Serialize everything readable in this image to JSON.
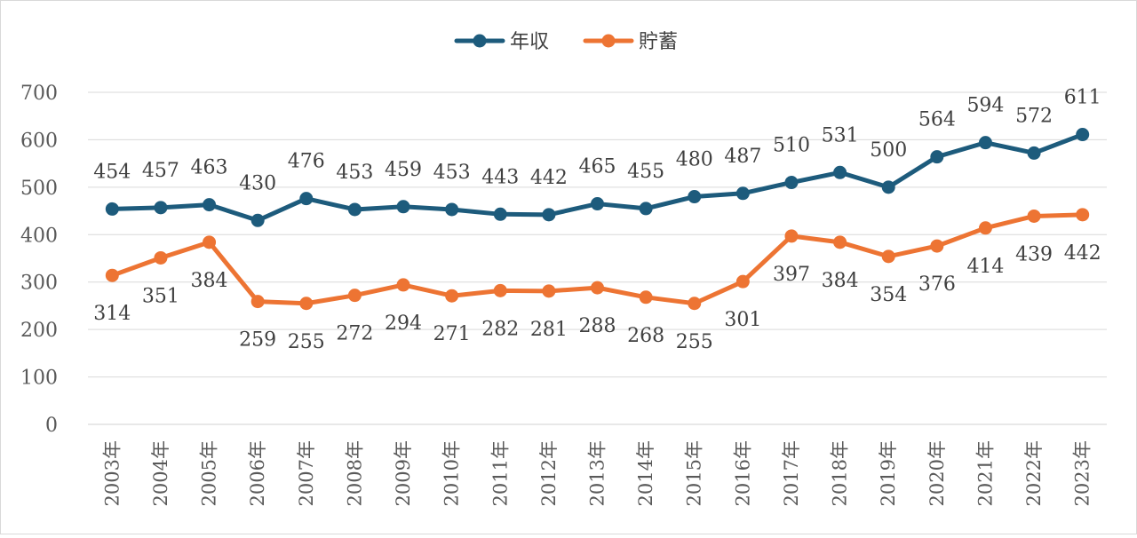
{
  "chart_data": {
    "type": "line",
    "categories": [
      "2003年",
      "2004年",
      "2005年",
      "2006年",
      "2007年",
      "2008年",
      "2009年",
      "2010年",
      "2011年",
      "2012年",
      "2013年",
      "2014年",
      "2015年",
      "2016年",
      "2017年",
      "2018年",
      "2019年",
      "2020年",
      "2021年",
      "2022年",
      "2023年"
    ],
    "series": [
      {
        "name": "年収",
        "color": "#1d5b7c",
        "label_position": "above",
        "values": [
          454,
          457,
          463,
          430,
          476,
          453,
          459,
          453,
          443,
          442,
          465,
          455,
          480,
          487,
          510,
          531,
          500,
          564,
          594,
          572,
          611
        ]
      },
      {
        "name": "貯蓄",
        "color": "#ed7433",
        "label_position": "below",
        "values": [
          314,
          351,
          384,
          259,
          255,
          272,
          294,
          271,
          282,
          281,
          288,
          268,
          255,
          301,
          397,
          384,
          354,
          376,
          414,
          439,
          442
        ]
      }
    ],
    "ylim": [
      0,
      700
    ],
    "yticks": [
      "0",
      "100",
      "200",
      "300",
      "400",
      "500",
      "600",
      "700"
    ],
    "grid": true,
    "legend": "top-center"
  }
}
